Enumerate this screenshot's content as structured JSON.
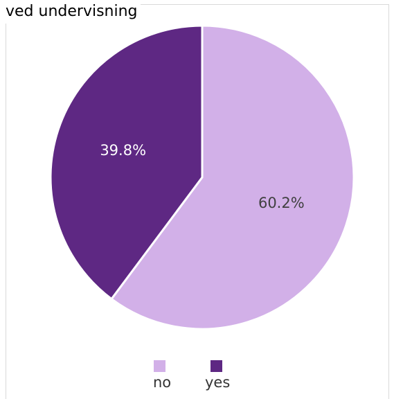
{
  "chart_data": {
    "type": "pie",
    "title": "ved undervisning",
    "slices": [
      {
        "label": "no",
        "value": 60.2,
        "display": "60.2%",
        "color": "#d2b0e8",
        "text_color": "#404040"
      },
      {
        "label": "yes",
        "value": 39.8,
        "display": "39.8%",
        "color": "#5e2883",
        "text_color": "#ffffff"
      }
    ],
    "legend_position": "bottom"
  }
}
